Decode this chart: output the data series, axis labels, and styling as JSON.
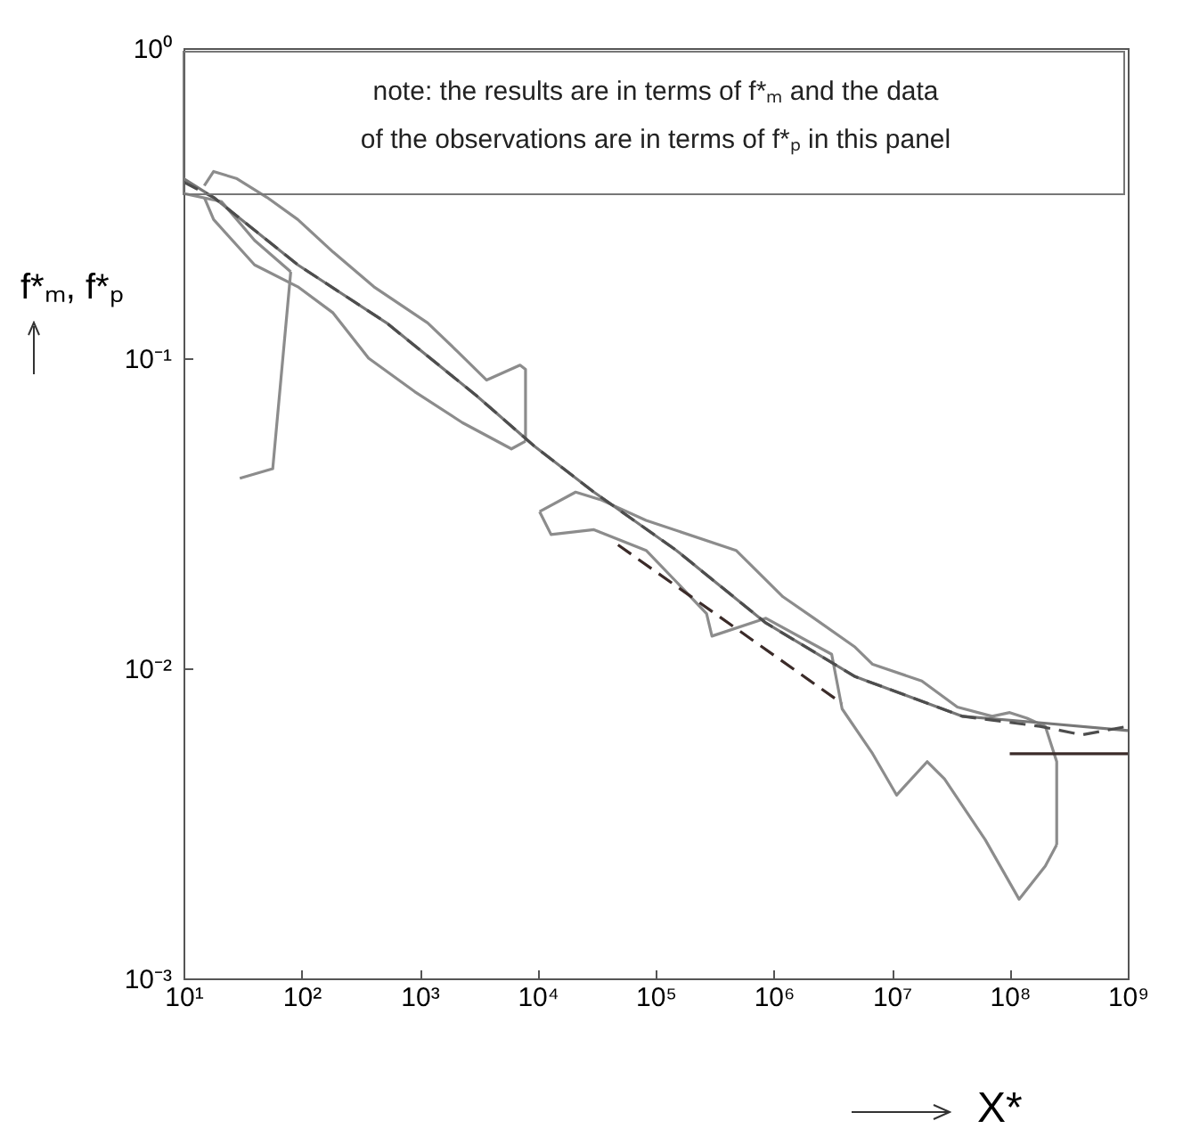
{
  "chart_data": {
    "type": "line",
    "xlabel": "X*",
    "ylabel": "f*ₘ, f*ₚ",
    "log": "xy",
    "grid": false,
    "marker": "none",
    "xlim": [
      10,
      1000000000
    ],
    "ylim": [
      0.001,
      1
    ],
    "xticks": [
      {
        "value": 10,
        "label": "10¹"
      },
      {
        "value": 100,
        "label": "10²"
      },
      {
        "value": 1000,
        "label": "10³"
      },
      {
        "value": 10000,
        "label": "10⁴"
      },
      {
        "value": 100000,
        "label": "10⁵"
      },
      {
        "value": 1000000,
        "label": "10⁶"
      },
      {
        "value": 10000000,
        "label": "10⁷"
      },
      {
        "value": 100000000,
        "label": "10⁸"
      },
      {
        "value": 1000000000,
        "label": "10⁹"
      }
    ],
    "yticks": [
      {
        "value": 0.001,
        "label": "10⁻³"
      },
      {
        "value": 0.01,
        "label": "10⁻²"
      },
      {
        "value": 0.1,
        "label": "10⁻¹"
      },
      {
        "value": 1,
        "label": "10⁰"
      }
    ],
    "annotations": [
      "note: the results are in terms of f*ₘ and the data",
      "of the observations are in terms of f*ₚ in this panel"
    ],
    "series": [
      {
        "color": "#8c8c8c",
        "line_style": "solid",
        "x": [
          15,
          18,
          28,
          51,
          93,
          185,
          410,
          1170,
          2100,
          3700,
          7100,
          7900,
          7900
        ],
        "values": [
          0.36,
          0.4,
          0.38,
          0.33,
          0.28,
          0.22,
          0.17,
          0.13,
          0.105,
          0.085,
          0.095,
          0.092,
          0.054
        ]
      },
      {
        "color": "#8c8c8c",
        "line_style": "solid",
        "x": [
          15,
          18,
          40,
          93,
          185,
          370,
          910,
          2300,
          6000,
          7900
        ],
        "values": [
          0.33,
          0.28,
          0.2,
          0.17,
          0.14,
          0.1,
          0.078,
          0.062,
          0.051,
          0.054
        ]
      },
      {
        "color": "#8c8c8c",
        "line_style": "solid",
        "x": [
          30,
          57,
          81
        ],
        "values": [
          0.041,
          0.044,
          0.19
        ]
      },
      {
        "color": "#8c8c8c",
        "line_style": "solid",
        "x": [
          10,
          21,
          40,
          81
        ],
        "values": [
          0.34,
          0.32,
          0.24,
          0.19
        ]
      },
      {
        "color": "#8c8c8c",
        "line_style": "solid",
        "x": [
          10400,
          21000,
          34000,
          83000,
          480000,
          1200000,
          2200000,
          4900000,
          6900000,
          18000000,
          36000000,
          71000000,
          100000000,
          140000000,
          200000000,
          250000000,
          250000000
        ],
        "values": [
          0.032,
          0.037,
          0.035,
          0.03,
          0.024,
          0.017,
          0.0145,
          0.0117,
          0.0103,
          0.0091,
          0.0075,
          0.007,
          0.0072,
          0.0069,
          0.0065,
          0.005,
          0.0027
        ]
      },
      {
        "color": "#8c8c8c",
        "line_style": "solid",
        "x": [
          10400,
          13000,
          30000,
          83000,
          150000,
          270000,
          300000,
          860000,
          3100000,
          3800000,
          6900000,
          11000000,
          20000000,
          28000000,
          62000000,
          120000000,
          200000000,
          250000000
        ],
        "values": [
          0.032,
          0.027,
          0.028,
          0.024,
          0.019,
          0.015,
          0.0127,
          0.0145,
          0.0111,
          0.0074,
          0.0053,
          0.0039,
          0.005,
          0.0044,
          0.0028,
          0.0018,
          0.0023,
          0.0027
        ]
      },
      {
        "color": "#777777",
        "line_style": "solid",
        "x": [
          10,
          18,
          93,
          525,
          3000,
          9400,
          30000,
          150000,
          860000,
          4900000,
          40000000,
          160000000,
          1000000000
        ],
        "values": [
          0.38,
          0.33,
          0.2,
          0.13,
          0.076,
          0.052,
          0.037,
          0.024,
          0.014,
          0.0094,
          0.007,
          0.0067,
          0.0063
        ]
      },
      {
        "color": "#4d4d4d",
        "line_style": "dashed",
        "x": [
          10,
          18,
          93,
          525,
          3000,
          9400,
          30000,
          150000,
          860000,
          4900000,
          40000000,
          180000000,
          410000000,
          1000000000
        ],
        "values": [
          0.37,
          0.33,
          0.2,
          0.13,
          0.076,
          0.052,
          0.037,
          0.024,
          0.014,
          0.0094,
          0.007,
          0.0065,
          0.0061,
          0.0065
        ]
      },
      {
        "color": "#3b2b29",
        "line_style": "dashed",
        "x": [
          48000,
          3800000
        ],
        "values": [
          0.025,
          0.0077
        ]
      },
      {
        "color": "#3b2b29",
        "line_style": "solid",
        "x": [
          100000000,
          1000000000
        ],
        "values": [
          0.0053,
          0.0053
        ]
      }
    ]
  }
}
